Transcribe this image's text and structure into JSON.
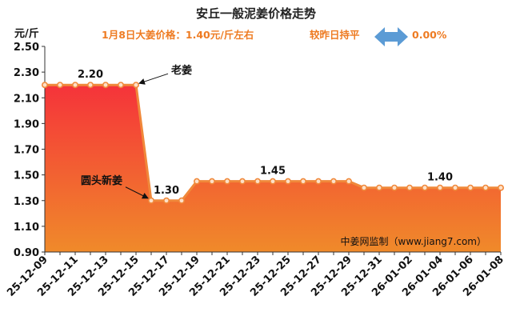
{
  "header": {
    "title": "安丘一般泥姜价格走势",
    "price_note": "1月8日大姜价格：1.40元/斤左右",
    "compare_note": "较昨日持平",
    "change_pct": "0.00%"
  },
  "colors": {
    "accent": "#ee7b22",
    "area_top": "#f5333a",
    "area_bottom": "#f08a2a",
    "line": "#f0883a",
    "arrow": "#5b9bd5"
  },
  "chart_data": {
    "type": "area",
    "title": "安丘一般泥姜价格走势",
    "ylabel": "元/斤",
    "xlabel": "",
    "ylim": [
      0.9,
      2.5
    ],
    "yticks": [
      "0.90",
      "1.10",
      "1.30",
      "1.50",
      "1.70",
      "1.90",
      "2.10",
      "2.30",
      "2.50"
    ],
    "ytick_values": [
      0.9,
      1.1,
      1.3,
      1.5,
      1.7,
      1.9,
      2.1,
      2.3,
      2.5
    ],
    "x": [
      "25-12-09",
      "25-12-10",
      "25-12-11",
      "25-12-12",
      "25-12-13",
      "25-12-14",
      "25-12-15",
      "25-12-16",
      "25-12-17",
      "25-12-18",
      "25-12-19",
      "25-12-20",
      "25-12-21",
      "25-12-22",
      "25-12-23",
      "25-12-24",
      "25-12-25",
      "25-12-26",
      "25-12-27",
      "25-12-28",
      "25-12-29",
      "25-12-30",
      "25-12-31",
      "26-01-01",
      "26-01-02",
      "26-01-03",
      "26-01-04",
      "26-01-05",
      "26-01-06",
      "26-01-07",
      "26-01-08"
    ],
    "xtick_labels": [
      "25-12-09",
      "25-12-11",
      "25-12-13",
      "25-12-15",
      "25-12-17",
      "25-12-19",
      "25-12-21",
      "25-12-23",
      "25-12-25",
      "25-12-27",
      "25-12-29",
      "25-12-31",
      "26-01-02",
      "26-01-04",
      "26-01-06",
      "26-01-08"
    ],
    "series": [
      {
        "name": "安丘一般泥姜",
        "values": [
          2.2,
          2.2,
          2.2,
          2.2,
          2.2,
          2.2,
          2.2,
          1.3,
          1.3,
          1.3,
          1.45,
          1.45,
          1.45,
          1.45,
          1.45,
          1.45,
          1.45,
          1.45,
          1.45,
          1.45,
          1.45,
          1.4,
          1.4,
          1.4,
          1.4,
          1.4,
          1.4,
          1.4,
          1.4,
          1.4,
          1.4
        ]
      }
    ],
    "data_labels": [
      {
        "index": 3,
        "text": "2.20"
      },
      {
        "index": 8,
        "text": "1.30"
      },
      {
        "index": 15,
        "text": "1.45"
      },
      {
        "index": 26,
        "text": "1.40"
      }
    ],
    "annotations": [
      {
        "text": "老姜",
        "index": 6
      },
      {
        "text": "圆头新姜",
        "index": 7
      }
    ],
    "watermark": "中姜网监制（www.jiang7.com）",
    "grid": false,
    "legend": "none"
  }
}
